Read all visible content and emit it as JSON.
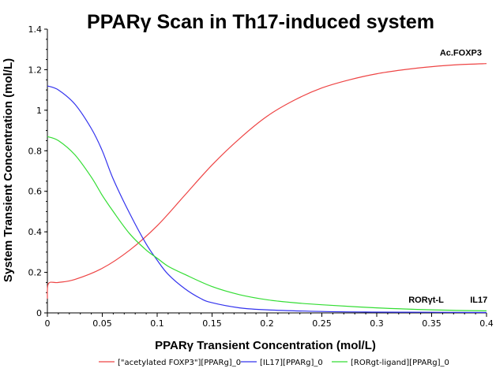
{
  "chart_data": {
    "type": "line",
    "title": "PPARγ Scan in Th17-induced system",
    "xlabel": "PPARγ Transient Concentration (mol/L)",
    "ylabel": "System Transient Concentration (mol/L)",
    "xlim": [
      0,
      0.4
    ],
    "ylim": [
      0,
      1.4
    ],
    "xticks": [
      "0",
      "0.05",
      "0.1",
      "0.15",
      "0.2",
      "0.25",
      "0.3",
      "0.35",
      "0.4"
    ],
    "yticks": [
      "0",
      "0.2",
      "0.4",
      "0.6",
      "0.8",
      "1",
      "1.2",
      "1.4"
    ],
    "legend_placement": "bottom",
    "annotations": [
      "Ac.FOXP3",
      "RORγt-L",
      "IL17"
    ],
    "series": [
      {
        "name": "[\"acetylated FOXP3\"][PPARg]_0",
        "color": "#ee4444",
        "x": [
          0,
          0.001,
          0.01,
          0.025,
          0.05,
          0.075,
          0.1,
          0.125,
          0.15,
          0.175,
          0.2,
          0.225,
          0.25,
          0.275,
          0.3,
          0.325,
          0.35,
          0.375,
          0.4
        ],
        "y": [
          0.07,
          0.145,
          0.15,
          0.165,
          0.22,
          0.31,
          0.43,
          0.58,
          0.73,
          0.86,
          0.97,
          1.05,
          1.11,
          1.15,
          1.18,
          1.2,
          1.215,
          1.225,
          1.23
        ]
      },
      {
        "name": "[IL17][PPARg]_0",
        "color": "#3333ee",
        "x": [
          0,
          0.01,
          0.025,
          0.04,
          0.05,
          0.06,
          0.075,
          0.09,
          0.1,
          0.11,
          0.125,
          0.14,
          0.15,
          0.175,
          0.2,
          0.25,
          0.3,
          0.35,
          0.4
        ],
        "y": [
          1.12,
          1.1,
          1.03,
          0.91,
          0.8,
          0.66,
          0.49,
          0.34,
          0.26,
          0.19,
          0.12,
          0.07,
          0.05,
          0.025,
          0.015,
          0.007,
          0.004,
          0.003,
          0.002
        ]
      },
      {
        "name": "[RORgt-ligand][PPARg]_0",
        "color": "#33dd33",
        "x": [
          0,
          0.01,
          0.025,
          0.04,
          0.05,
          0.06,
          0.075,
          0.09,
          0.1,
          0.11,
          0.125,
          0.15,
          0.175,
          0.2,
          0.225,
          0.25,
          0.3,
          0.35,
          0.4
        ],
        "y": [
          0.87,
          0.85,
          0.78,
          0.67,
          0.58,
          0.5,
          0.39,
          0.31,
          0.27,
          0.23,
          0.19,
          0.13,
          0.09,
          0.065,
          0.05,
          0.04,
          0.025,
          0.015,
          0.01
        ]
      }
    ]
  }
}
